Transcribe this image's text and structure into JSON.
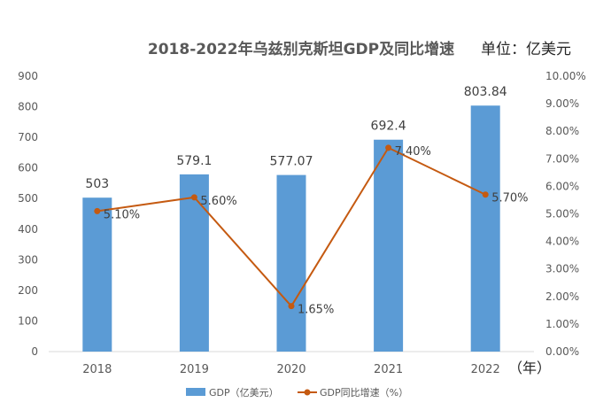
{
  "chart_data": {
    "type": "bar",
    "title": "2018-2022年乌兹别克斯坦GDP及同比增速",
    "unit_label": "单位：亿美元",
    "x_unit_label": "（年）",
    "categories": [
      "2018",
      "2019",
      "2020",
      "2021",
      "2022"
    ],
    "series": [
      {
        "name": "GDP（亿美元）",
        "type": "bar",
        "axis": "left",
        "color": "#5b9bd5",
        "values": [
          503,
          579.1,
          577.07,
          692.4,
          803.84
        ],
        "labels": [
          "503",
          "579.1",
          "577.07",
          "692.4",
          "803.84"
        ]
      },
      {
        "name": "GDP同比增速（%）",
        "type": "line",
        "axis": "right",
        "color": "#c55a11",
        "values": [
          5.1,
          5.6,
          1.65,
          7.4,
          5.7
        ],
        "labels": [
          "5.10%",
          "5.60%",
          "1.65%",
          "7.40%",
          "5.70%"
        ]
      }
    ],
    "y_left": {
      "ylim": [
        0,
        900
      ],
      "ticks": [
        "0",
        "100",
        "200",
        "300",
        "400",
        "500",
        "600",
        "700",
        "800",
        "900"
      ]
    },
    "y_right": {
      "ylim": [
        0,
        10
      ],
      "ticks": [
        "0.00%",
        "1.00%",
        "2.00%",
        "3.00%",
        "4.00%",
        "5.00%",
        "6.00%",
        "7.00%",
        "8.00%",
        "9.00%",
        "10.00%"
      ]
    },
    "grid": false,
    "legend_position": "bottom"
  }
}
